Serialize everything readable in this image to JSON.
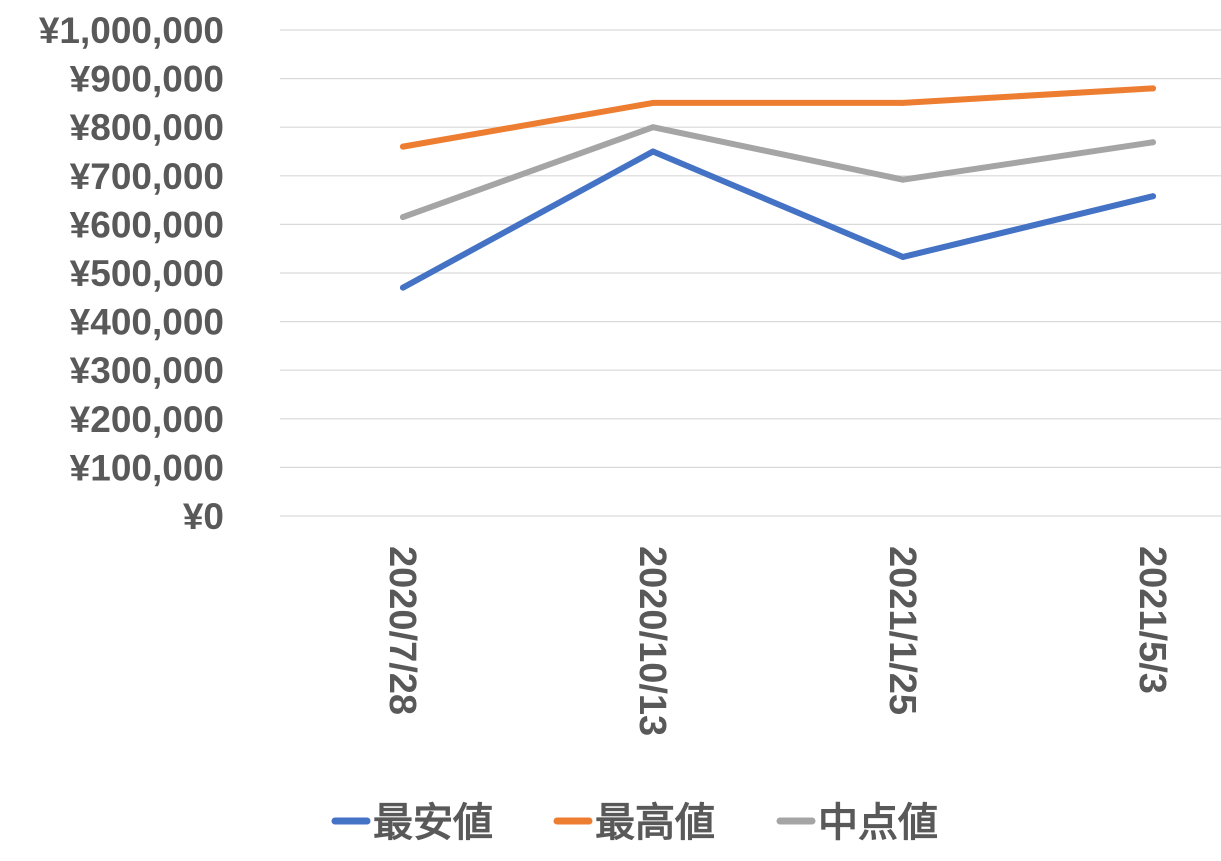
{
  "chart_data": {
    "type": "line",
    "title": "",
    "xlabel": "",
    "ylabel": "",
    "categories": [
      "2020/7/28",
      "2020/10/13",
      "2021/1/25",
      "2021/5/3"
    ],
    "ylim": [
      0,
      1000000
    ],
    "ytick_values": [
      0,
      100000,
      200000,
      300000,
      400000,
      500000,
      600000,
      700000,
      800000,
      900000,
      1000000
    ],
    "ytick_labels": [
      "¥0",
      "¥100,000",
      "¥200,000",
      "¥300,000",
      "¥400,000",
      "¥500,000",
      "¥600,000",
      "¥700,000",
      "¥800,000",
      "¥900,000",
      "¥1,000,000"
    ],
    "grid": true,
    "legend_position": "bottom",
    "series": [
      {
        "name": "最安値",
        "color": "#4472c4",
        "values": [
          470000,
          750000,
          533000,
          658000
        ]
      },
      {
        "name": "最高値",
        "color": "#ed7d31",
        "values": [
          760000,
          850000,
          850000,
          880000
        ]
      },
      {
        "name": "中点値",
        "color": "#a5a5a5",
        "values": [
          615000,
          800000,
          692000,
          769000
        ]
      }
    ]
  }
}
